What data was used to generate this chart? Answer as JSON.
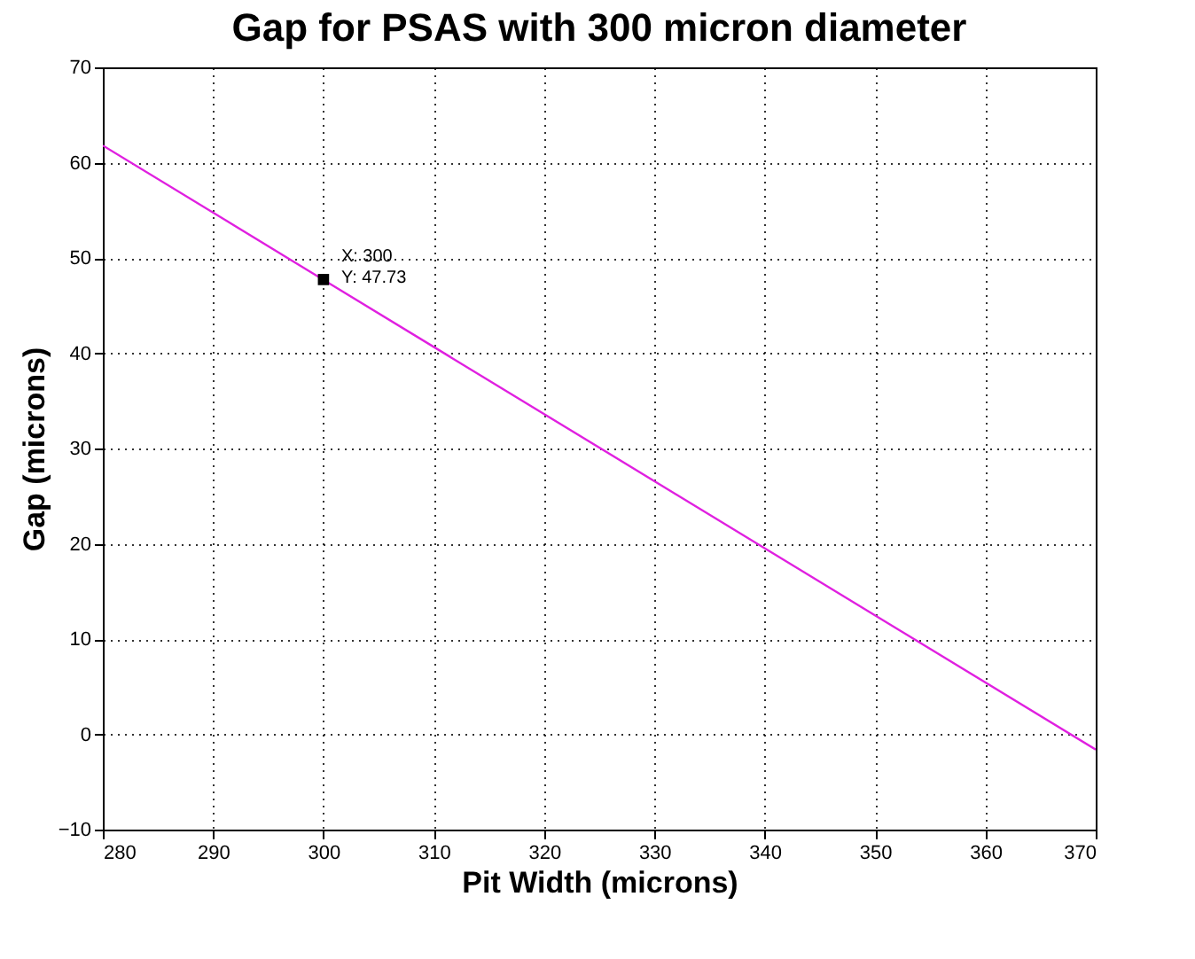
{
  "chart_data": {
    "type": "line",
    "title": "Gap for PSAS with 300 micron diameter",
    "xlabel": "Pit Width (microns)",
    "ylabel": "Gap (microns)",
    "x": [
      280,
      300,
      370
    ],
    "series": [
      {
        "color": "#e020e0",
        "values": [
          61.8,
          47.7,
          -1.6
        ]
      }
    ],
    "xlim": [
      280,
      370
    ],
    "xticks": [
      280,
      290,
      300,
      310,
      320,
      330,
      340,
      350,
      360,
      370
    ],
    "ylim": [
      -10,
      70
    ],
    "yticks": [
      -10,
      0,
      10,
      20,
      30,
      40,
      50,
      60,
      70
    ],
    "grid": true,
    "line_style": "solid",
    "annotations": [
      {
        "text": "X: 300\nY: 47.73",
        "x": 300,
        "y": 47.73
      }
    ]
  }
}
